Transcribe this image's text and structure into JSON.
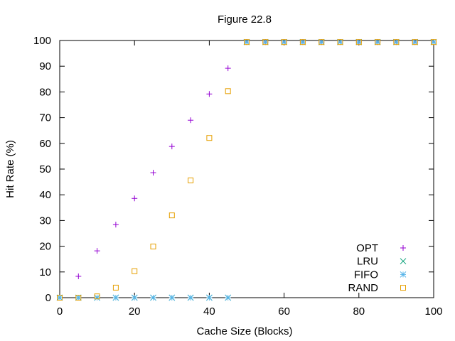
{
  "chart_data": {
    "type": "scatter",
    "title": "Figure 22.8",
    "xlabel": "Cache Size (Blocks)",
    "ylabel": "Hit Rate (%)",
    "xlim": [
      0,
      100
    ],
    "ylim": [
      0,
      100
    ],
    "xticks": [
      0,
      20,
      40,
      60,
      80,
      100
    ],
    "yticks": [
      0,
      10,
      20,
      30,
      40,
      50,
      60,
      70,
      80,
      90,
      100
    ],
    "grid": false,
    "legend_position": "bottom-right",
    "x": [
      0,
      5,
      10,
      15,
      20,
      25,
      30,
      35,
      40,
      45,
      50,
      55,
      60,
      65,
      70,
      75,
      80,
      85,
      90,
      95,
      100
    ],
    "series": [
      {
        "name": "OPT",
        "marker": "plus",
        "color": "#9400d3",
        "values": [
          0,
          8.3,
          18.2,
          28.4,
          38.6,
          48.6,
          58.8,
          69.0,
          79.2,
          89.2,
          99.4,
          99.4,
          99.4,
          99.4,
          99.4,
          99.4,
          99.4,
          99.4,
          99.4,
          99.4,
          99.4
        ]
      },
      {
        "name": "LRU",
        "marker": "cross",
        "color": "#009e73",
        "values": [
          0,
          0,
          0,
          0,
          0,
          0,
          0,
          0,
          0,
          0,
          99.4,
          99.4,
          99.4,
          99.4,
          99.4,
          99.4,
          99.4,
          99.4,
          99.4,
          99.4,
          99.4
        ]
      },
      {
        "name": "FIFO",
        "marker": "asterisk",
        "color": "#56b4e9",
        "values": [
          0,
          0,
          0,
          0,
          0,
          0,
          0,
          0,
          0,
          0,
          99.4,
          99.4,
          99.4,
          99.4,
          99.4,
          99.4,
          99.4,
          99.4,
          99.4,
          99.4,
          99.4
        ]
      },
      {
        "name": "RAND",
        "marker": "square",
        "color": "#e69f00",
        "values": [
          0,
          0,
          0.5,
          3.9,
          10.3,
          19.9,
          32.0,
          45.6,
          62.1,
          80.3,
          99.4,
          99.4,
          99.4,
          99.4,
          99.4,
          99.4,
          99.4,
          99.4,
          99.4,
          99.4,
          99.4
        ]
      }
    ]
  }
}
